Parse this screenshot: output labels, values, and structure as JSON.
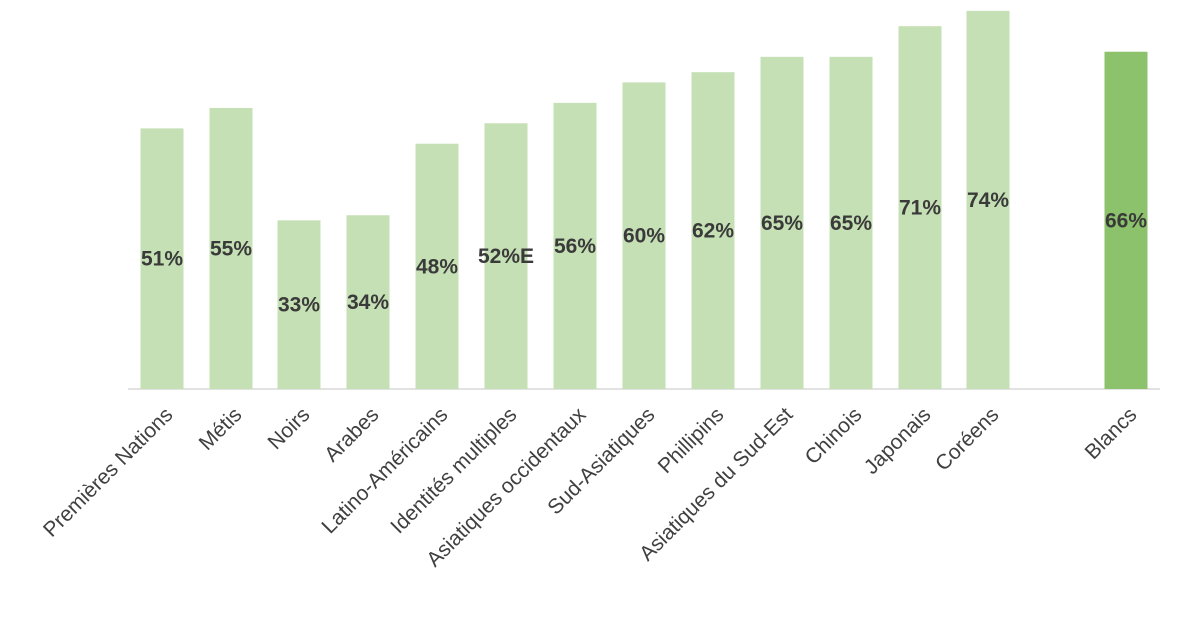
{
  "chart_data": {
    "type": "bar",
    "categories": [
      "Premières Nations",
      "Métis",
      "Noirs",
      "Arabes",
      "Latino-Américains",
      "Identités multiples",
      "Asiatiques occidentaux",
      "Sud-Asiatiques",
      "Phillipins",
      "Asiatiques du Sud-Est",
      "Chinois",
      "Japonais",
      "Coréens",
      "Blancs"
    ],
    "values": [
      51,
      55,
      33,
      34,
      48,
      52,
      56,
      60,
      62,
      65,
      65,
      71,
      74,
      66
    ],
    "data_labels": [
      "51%",
      "55%",
      "33%",
      "34%",
      "48%",
      "52%E",
      "56%",
      "60%",
      "62%",
      "65%",
      "65%",
      "71%",
      "74%",
      "66%"
    ],
    "highlight_category": "Blancs",
    "title": "",
    "xlabel": "",
    "ylabel": "",
    "ylim": [
      0,
      75
    ],
    "grid": false,
    "legend": "none",
    "colors": {
      "bar": "#c5e0b4",
      "highlight": "#8cc26b",
      "axis": "#d9d9d9",
      "label": "#3a3a3a"
    }
  }
}
